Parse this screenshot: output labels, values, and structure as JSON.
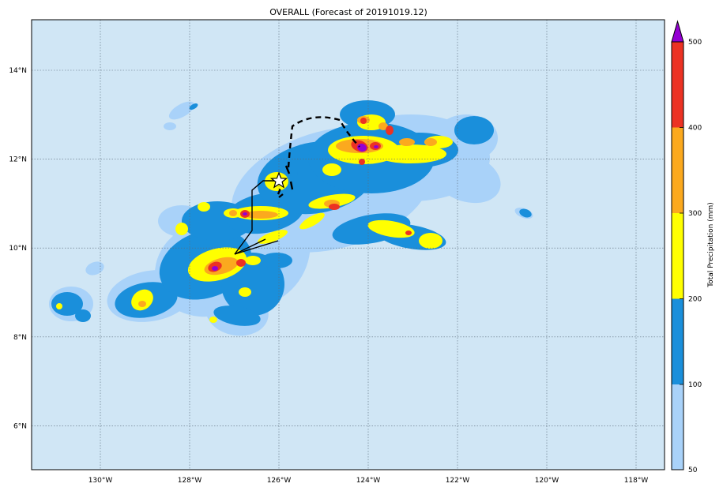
{
  "title": "OVERALL (Forecast of 20191019.12)",
  "map": {
    "lon_ticks": [
      "130°W",
      "128°W",
      "126°W",
      "124°W",
      "122°W",
      "120°W",
      "118°W"
    ],
    "lat_ticks": [
      "14°N",
      "12°N",
      "10°N",
      "8°N",
      "6°N"
    ],
    "lon_range": [
      -131.5,
      -117.3
    ],
    "lat_range": [
      5,
      15.1
    ],
    "ocean_color": "#d0e6f5",
    "gridlines": "dotted",
    "markers": [
      {
        "type": "star-icon",
        "lon": -125.95,
        "lat": 11.5
      }
    ],
    "track": {
      "past": "solid-line",
      "forecast": "dashed-line"
    }
  },
  "colorbar": {
    "label": "Total Precipitation (mm)",
    "ticks": [
      "50",
      "100",
      "200",
      "300",
      "400",
      "500"
    ],
    "levels": [
      {
        "from": 50,
        "to": 100,
        "color": "#a9d2f9"
      },
      {
        "from": 100,
        "to": 200,
        "color": "#1a8fdb"
      },
      {
        "from": 200,
        "to": 300,
        "color": "#ffff00"
      },
      {
        "from": 300,
        "to": 400,
        "color": "#fba91e"
      },
      {
        "from": 400,
        "to": 500,
        "color": "#ec3223"
      },
      {
        "from": 500,
        "to": null,
        "color": "#9400d3"
      }
    ],
    "extend": "max"
  }
}
